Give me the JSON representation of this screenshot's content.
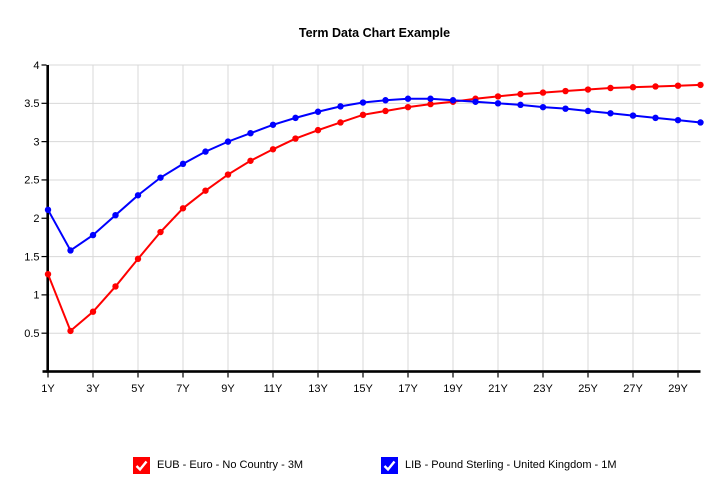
{
  "chart_data": {
    "type": "line",
    "title": "Term Data Chart Example",
    "xlabel": "",
    "ylabel": "",
    "x_unit": "years",
    "x": [
      1,
      2,
      3,
      4,
      5,
      6,
      7,
      8,
      9,
      10,
      11,
      12,
      13,
      14,
      15,
      16,
      17,
      18,
      19,
      20,
      21,
      22,
      23,
      24,
      25,
      26,
      27,
      28,
      29,
      30
    ],
    "x_tick_positions": [
      1,
      3,
      5,
      7,
      9,
      11,
      13,
      15,
      17,
      19,
      21,
      23,
      25,
      27,
      29
    ],
    "x_tick_labels": [
      "1Y",
      "3Y",
      "5Y",
      "7Y",
      "9Y",
      "11Y",
      "13Y",
      "15Y",
      "17Y",
      "19Y",
      "21Y",
      "23Y",
      "25Y",
      "27Y",
      "29Y"
    ],
    "y_ticks": [
      0.5,
      1,
      1.5,
      2,
      2.5,
      3,
      3.5,
      4
    ],
    "y_tick_labels": [
      "0.5",
      "1",
      "1.5",
      "2",
      "2.5",
      "3",
      "3.5",
      "4"
    ],
    "xlim": [
      1,
      30
    ],
    "ylim": [
      0,
      4
    ],
    "grid": true,
    "legend_position": "bottom",
    "series": [
      {
        "name": "EUB - Euro - No Country - 3M",
        "color": "#ff0000",
        "marker": "circle",
        "values": [
          1.27,
          0.53,
          0.78,
          1.11,
          1.47,
          1.82,
          2.13,
          2.36,
          2.57,
          2.75,
          2.9,
          3.04,
          3.15,
          3.25,
          3.35,
          3.4,
          3.45,
          3.49,
          3.52,
          3.56,
          3.59,
          3.62,
          3.64,
          3.66,
          3.68,
          3.7,
          3.71,
          3.72,
          3.73,
          3.74
        ]
      },
      {
        "name": "LIB - Pound Sterling - United Kingdom - 1M",
        "color": "#0000ff",
        "marker": "circle",
        "values": [
          2.11,
          1.58,
          1.78,
          2.04,
          2.3,
          2.53,
          2.71,
          2.87,
          3.0,
          3.11,
          3.22,
          3.31,
          3.39,
          3.46,
          3.51,
          3.54,
          3.56,
          3.56,
          3.54,
          3.52,
          3.5,
          3.48,
          3.45,
          3.43,
          3.4,
          3.37,
          3.34,
          3.31,
          3.28,
          3.25
        ]
      }
    ]
  },
  "legend": {
    "items": [
      {
        "label": "EUB - Euro - No Country - 3M",
        "color": "#ff0000",
        "checked": true
      },
      {
        "label": "LIB - Pound Sterling - United Kingdom - 1M",
        "color": "#0000ff",
        "checked": true
      }
    ]
  },
  "colors": {
    "background": "#ffffff",
    "grid": "#d8d8d8",
    "axis": "#000000",
    "tick_text": "#000000",
    "title_text": "#000000"
  }
}
